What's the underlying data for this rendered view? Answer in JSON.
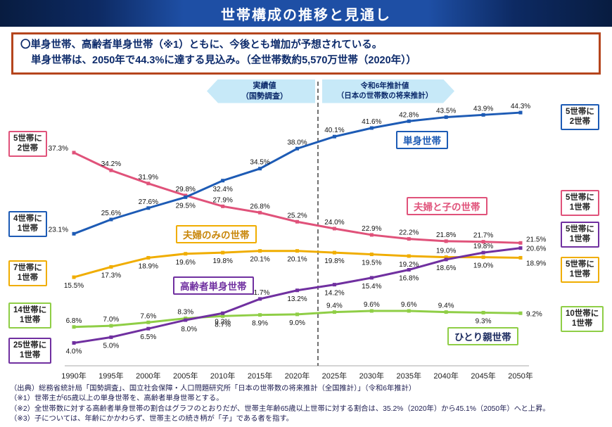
{
  "header": {
    "title": "世帯構成の推移と見通し"
  },
  "summary": {
    "line1": "〇単身世帯、高齢者単身世帯（※1）ともに、今後とも増加が予想されている。",
    "line2": "単身世帯は、2050年で44.3%に達する見込み。（全世帯数約5,570万世帯（2020年））"
  },
  "chart_data": {
    "type": "line",
    "title": "世帯構成の推移と見通し",
    "categories": [
      "1990年",
      "1995年",
      "2000年",
      "2005年",
      "2010年",
      "2015年",
      "2020年",
      "2025年",
      "2030年",
      "2035年",
      "2040年",
      "2045年",
      "2050年"
    ],
    "unit": "%",
    "ylim": [
      0,
      48
    ],
    "grid": false,
    "divider_between": [
      "2020年",
      "2025年"
    ],
    "series": [
      {
        "name": "単身世帯",
        "color": "#1d5bb5",
        "values": [
          23.1,
          25.6,
          27.6,
          29.5,
          32.4,
          34.5,
          38.0,
          40.1,
          41.6,
          42.8,
          43.5,
          43.9,
          44.3
        ]
      },
      {
        "name": "夫婦と子の世帯",
        "color": "#e0527a",
        "values": [
          37.3,
          34.2,
          31.9,
          29.8,
          27.9,
          26.8,
          25.2,
          24.0,
          22.9,
          22.2,
          21.8,
          21.7,
          21.5
        ]
      },
      {
        "name": "夫婦のみの世帯",
        "color": "#f0ad00",
        "values": [
          15.5,
          17.3,
          18.9,
          19.6,
          19.8,
          20.1,
          20.1,
          19.8,
          19.5,
          19.2,
          19.0,
          19.0,
          18.9
        ]
      },
      {
        "name": "高齢者単身世帯",
        "color": "#7030a0",
        "values": [
          4.0,
          5.0,
          6.5,
          8.0,
          9.2,
          11.7,
          13.2,
          14.2,
          15.4,
          16.8,
          18.6,
          19.8,
          20.6
        ]
      },
      {
        "name": "ひとり親世帯",
        "color": "#8fce46",
        "values": [
          6.8,
          7.0,
          7.6,
          8.3,
          8.7,
          8.9,
          9.0,
          9.4,
          9.6,
          9.6,
          9.4,
          9.3,
          9.2
        ]
      }
    ],
    "annotations": {
      "actual_label": "実績値",
      "actual_sub": "（国勢調査）",
      "projection_label": "令和6年推計値",
      "projection_sub": "（日本の世帯数の将来推計）"
    }
  },
  "callouts": {
    "left": [
      {
        "line1": "5世帯に",
        "line2": "2世帯",
        "series": "夫婦と子の世帯"
      },
      {
        "line1": "4世帯に",
        "line2": "1世帯",
        "series": "単身世帯"
      },
      {
        "line1": "7世帯に",
        "line2": "1世帯",
        "series": "夫婦のみの世帯"
      },
      {
        "line1": "14世帯に",
        "line2": "1世帯",
        "series": "ひとり親世帯"
      },
      {
        "line1": "25世帯に",
        "line2": "1世帯",
        "series": "高齢者単身世帯"
      }
    ],
    "right": [
      {
        "line1": "5世帯に",
        "line2": "2世帯",
        "series": "単身世帯"
      },
      {
        "line1": "5世帯に",
        "line2": "1世帯",
        "series": "夫婦と子の世帯"
      },
      {
        "line1": "5世帯に",
        "line2": "1世帯",
        "series": "高齢者単身世帯"
      },
      {
        "line1": "5世帯に",
        "line2": "1世帯",
        "series": "夫婦のみの世帯"
      },
      {
        "line1": "10世帯に",
        "line2": "1世帯",
        "series": "ひとり親世帯"
      }
    ]
  },
  "notes": [
    "（出典）総務省統計局「国勢調査」、国立社会保障・人口問題研究所「日本の世帯数の将来推計（全国推計）」（令和6年推計）",
    "（※1）世帯主が65歳以上の単身世帯を、高齢者単身世帯とする。",
    "（※2）全世帯数に対する高齢者単身世帯の割合はグラフのとおりだが、世帯主年齢65歳以上世帯に対する割合は、35.2%（2020年）から45.1%（2050年）へと上昇。",
    "（※3）子については、年齢にかかわらず、世帯主との続き柄が「子」である者を指す。"
  ]
}
